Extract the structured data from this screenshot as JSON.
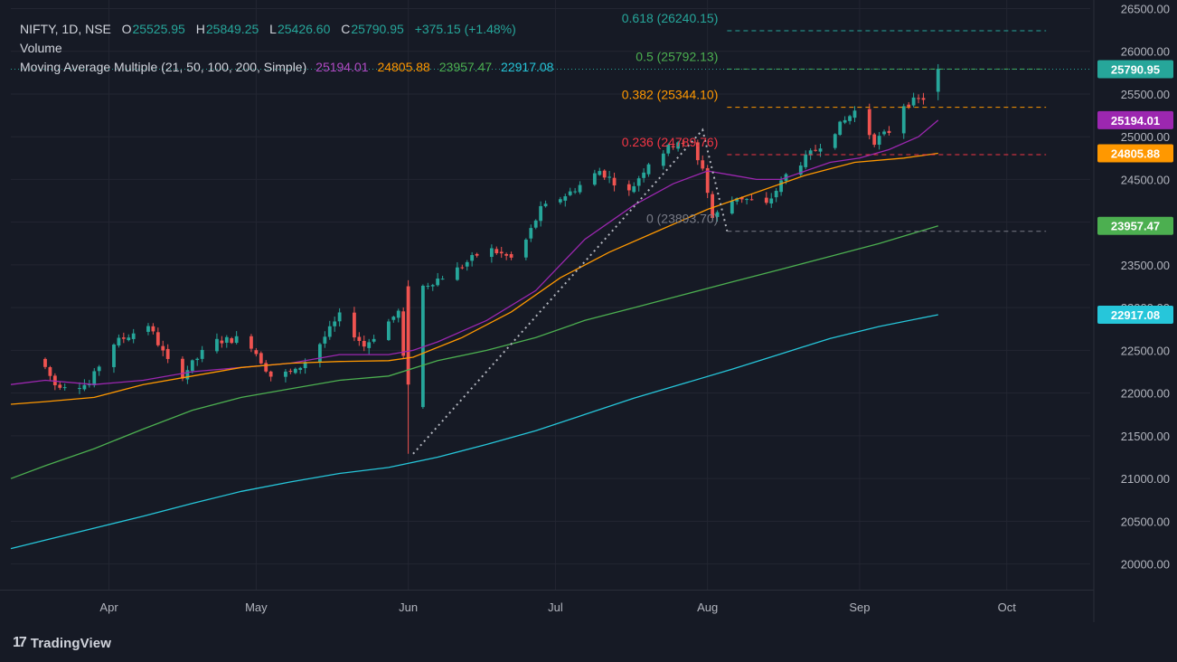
{
  "legend": {
    "symbol": "NIFTY, 1D, NSE",
    "ohlc": [
      {
        "k": "O",
        "v": "25525.95"
      },
      {
        "k": "H",
        "v": "25849.25"
      },
      {
        "k": "L",
        "v": "25426.60"
      },
      {
        "k": "C",
        "v": "25790.95"
      }
    ],
    "change": "+375.15 (+1.48%)",
    "volume_label": "Volume",
    "ma_label": "Moving Average Multiple (21, 50, 100, 200, Simple)"
  },
  "branding": {
    "logo_mark": "17",
    "logo_text": "TradingView"
  },
  "colors": {
    "background": "#161a25",
    "grid": "#232632",
    "text": "#d1d4dc",
    "up": "#26a69a",
    "down": "#ef5350",
    "ma21": "#9c27b0",
    "ma50": "#ff9800",
    "ma100": "#4caf50",
    "ma200": "#26c6da"
  },
  "chart_data": {
    "type": "candlestick",
    "symbol": "NIFTY",
    "interval": "1D",
    "exchange": "NSE",
    "ylim": [
      19700,
      26600
    ],
    "y_ticks": [
      "20000.00",
      "20500.00",
      "21000.00",
      "21500.00",
      "22000.00",
      "22500.00",
      "23000.00",
      "23500.00",
      "24000.00",
      "24500.00",
      "25000.00",
      "25500.00",
      "26000.00",
      "26500.00"
    ],
    "x_ticks": [
      {
        "label": "Apr",
        "day": 13
      },
      {
        "label": "May",
        "day": 43
      },
      {
        "label": "Jun",
        "day": 74
      },
      {
        "label": "Jul",
        "day": 104
      },
      {
        "label": "Aug",
        "day": 135
      },
      {
        "label": "Sep",
        "day": 166
      },
      {
        "label": "Oct",
        "day": 196
      }
    ],
    "x_range": [
      -7,
      213
    ],
    "last_candle_day": 182,
    "candle_keys": [
      {
        "day": 0,
        "price": 22400
      },
      {
        "day": 3,
        "price": 22100
      },
      {
        "day": 10,
        "price": 22100
      },
      {
        "day": 14,
        "price": 22550
      },
      {
        "day": 22,
        "price": 22800
      },
      {
        "day": 28,
        "price": 22150
      },
      {
        "day": 35,
        "price": 22600
      },
      {
        "day": 42,
        "price": 22650
      },
      {
        "day": 47,
        "price": 22200
      },
      {
        "day": 52,
        "price": 22250
      },
      {
        "day": 56,
        "price": 22500
      },
      {
        "day": 61,
        "price": 22900
      },
      {
        "day": 66,
        "price": 22550
      },
      {
        "day": 73,
        "price": 22950
      },
      {
        "day": 75,
        "price": 21850
      },
      {
        "day": 78,
        "price": 23250
      },
      {
        "day": 85,
        "price": 23450
      },
      {
        "day": 91,
        "price": 23700
      },
      {
        "day": 97,
        "price": 23550
      },
      {
        "day": 102,
        "price": 24150
      },
      {
        "day": 108,
        "price": 24350
      },
      {
        "day": 114,
        "price": 24600
      },
      {
        "day": 120,
        "price": 24350
      },
      {
        "day": 124,
        "price": 24700
      },
      {
        "day": 130,
        "price": 24950
      },
      {
        "day": 135,
        "price": 24650
      },
      {
        "day": 137,
        "price": 24050
      },
      {
        "day": 142,
        "price": 24300
      },
      {
        "day": 148,
        "price": 24200
      },
      {
        "day": 152,
        "price": 24550
      },
      {
        "day": 158,
        "price": 24850
      },
      {
        "day": 166,
        "price": 25300
      },
      {
        "day": 170,
        "price": 24950
      },
      {
        "day": 174,
        "price": 25100
      },
      {
        "day": 176,
        "price": 25380
      },
      {
        "day": 180,
        "price": 25450
      },
      {
        "day": 182,
        "price": 25790.95
      }
    ],
    "last_candle": {
      "open": 25525.95,
      "high": 25849.25,
      "low": 25426.6,
      "close": 25790.95
    },
    "change": 375.15,
    "change_pct": 1.48,
    "series": [
      {
        "name": "MA 21",
        "last": "25194.01",
        "color": "#9c27b0",
        "points": [
          [
            -7,
            22100
          ],
          [
            0,
            22150
          ],
          [
            10,
            22100
          ],
          [
            20,
            22150
          ],
          [
            30,
            22250
          ],
          [
            40,
            22300
          ],
          [
            50,
            22350
          ],
          [
            60,
            22450
          ],
          [
            70,
            22450
          ],
          [
            75,
            22500
          ],
          [
            80,
            22600
          ],
          [
            90,
            22850
          ],
          [
            100,
            23200
          ],
          [
            110,
            23800
          ],
          [
            120,
            24200
          ],
          [
            128,
            24450
          ],
          [
            135,
            24600
          ],
          [
            140,
            24550
          ],
          [
            145,
            24500
          ],
          [
            150,
            24500
          ],
          [
            160,
            24700
          ],
          [
            166,
            24750
          ],
          [
            172,
            24850
          ],
          [
            178,
            25000
          ],
          [
            182,
            25194.01
          ]
        ]
      },
      {
        "name": "MA 50",
        "last": "24805.88",
        "color": "#ff9800",
        "points": [
          [
            -7,
            21870
          ],
          [
            0,
            21900
          ],
          [
            10,
            21950
          ],
          [
            20,
            22100
          ],
          [
            30,
            22200
          ],
          [
            40,
            22300
          ],
          [
            50,
            22350
          ],
          [
            60,
            22370
          ],
          [
            70,
            22380
          ],
          [
            75,
            22420
          ],
          [
            85,
            22650
          ],
          [
            95,
            22950
          ],
          [
            105,
            23350
          ],
          [
            115,
            23650
          ],
          [
            125,
            23900
          ],
          [
            135,
            24150
          ],
          [
            145,
            24350
          ],
          [
            155,
            24550
          ],
          [
            165,
            24700
          ],
          [
            175,
            24750
          ],
          [
            182,
            24805.88
          ]
        ]
      },
      {
        "name": "MA 100",
        "last": "23957.47",
        "color": "#4caf50",
        "points": [
          [
            -7,
            21000
          ],
          [
            0,
            21150
          ],
          [
            10,
            21350
          ],
          [
            20,
            21580
          ],
          [
            30,
            21800
          ],
          [
            40,
            21950
          ],
          [
            50,
            22050
          ],
          [
            60,
            22150
          ],
          [
            70,
            22200
          ],
          [
            80,
            22380
          ],
          [
            90,
            22500
          ],
          [
            100,
            22650
          ],
          [
            110,
            22850
          ],
          [
            120,
            23000
          ],
          [
            130,
            23150
          ],
          [
            140,
            23300
          ],
          [
            150,
            23450
          ],
          [
            160,
            23600
          ],
          [
            170,
            23750
          ],
          [
            182,
            23957.47
          ]
        ]
      },
      {
        "name": "MA 200",
        "last": "22917.08",
        "color": "#26c6da",
        "points": [
          [
            -7,
            20180
          ],
          [
            0,
            20280
          ],
          [
            10,
            20420
          ],
          [
            20,
            20560
          ],
          [
            30,
            20710
          ],
          [
            40,
            20850
          ],
          [
            50,
            20960
          ],
          [
            60,
            21060
          ],
          [
            70,
            21130
          ],
          [
            80,
            21250
          ],
          [
            90,
            21400
          ],
          [
            100,
            21560
          ],
          [
            110,
            21750
          ],
          [
            120,
            21940
          ],
          [
            130,
            22110
          ],
          [
            140,
            22280
          ],
          [
            150,
            22460
          ],
          [
            160,
            22640
          ],
          [
            170,
            22780
          ],
          [
            182,
            22917.08
          ]
        ]
      }
    ],
    "fib": {
      "trend": [
        [
          75,
          21290
        ],
        [
          134,
          25080
        ],
        [
          139,
          23893.7
        ]
      ],
      "start_day": 139,
      "end_day": 204,
      "levels": [
        {
          "label": "0.618 (26240.15)",
          "value": 26240.15,
          "color": "#26a69a"
        },
        {
          "label": "0.5 (25792.13)",
          "value": 25792.13,
          "color": "#4caf50"
        },
        {
          "label": "0.382 (25344.10)",
          "value": 25344.1,
          "color": "#ff9800"
        },
        {
          "label": "0.236 (24789.76)",
          "value": 24789.76,
          "color": "#f23645"
        },
        {
          "label": "0 (23893.70)",
          "value": 23893.7,
          "color": "#787b86"
        }
      ]
    },
    "price_tags": [
      {
        "label": "25790.95",
        "value": 25790.95,
        "color": "#26a69a"
      },
      {
        "label": "25194.01",
        "value": 25194.01,
        "color": "#9c27b0"
      },
      {
        "label": "24805.88",
        "value": 24805.88,
        "color": "#ff9800"
      },
      {
        "label": "23957.47",
        "value": 23957.47,
        "color": "#4caf50"
      },
      {
        "label": "22917.08",
        "value": 22917.08,
        "color": "#26c6da"
      }
    ]
  }
}
